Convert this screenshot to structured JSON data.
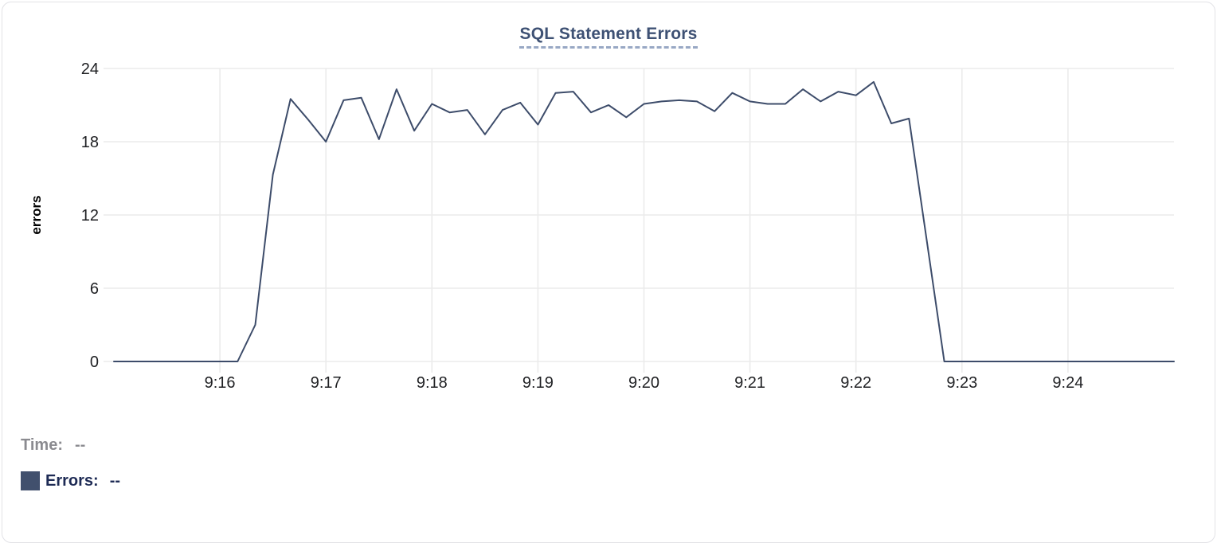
{
  "chart": {
    "title": "SQL Statement Errors",
    "tooltip_readout": {
      "time_label": "Time:",
      "time_value": "--",
      "errors_label": "Errors:",
      "errors_value": "--"
    },
    "colors": {
      "line": "#3d4c6a",
      "grid": "#ebebeb",
      "title": "#3e5174",
      "title_underline": "#98a8c4",
      "tick_text": "#1f2023",
      "y_axis_label_text": "#000000",
      "legend_time": "#8b8b90",
      "legend_errors": "#1e2b55",
      "swatch": "#41506d"
    }
  },
  "chart_data": {
    "type": "line",
    "title": "SQL Statement Errors",
    "xlabel": "",
    "ylabel": "errors",
    "ylim": [
      0,
      24
    ],
    "y_ticks": [
      0,
      6,
      12,
      18,
      24
    ],
    "x_tick_labels": [
      "9:16",
      "9:17",
      "9:18",
      "9:19",
      "9:20",
      "9:21",
      "9:22",
      "9:23",
      "9:24"
    ],
    "x_start": "9:15:00",
    "x_end": "9:25:00",
    "sample_interval_seconds": 10,
    "grid": true,
    "legend_position": "bottom-left",
    "series": [
      {
        "name": "Errors",
        "color": "#3d4c6a",
        "values": [
          0,
          0,
          0,
          0,
          0,
          0,
          0,
          0,
          3,
          15.3,
          21.5,
          19.8,
          18,
          21.4,
          21.6,
          18.2,
          22.3,
          18.9,
          21.1,
          20.4,
          20.6,
          18.6,
          20.6,
          21.2,
          19.4,
          22,
          22.1,
          20.4,
          21,
          20,
          21.1,
          21.3,
          21.4,
          21.3,
          20.5,
          22,
          21.3,
          21.1,
          21.1,
          22.3,
          21.3,
          22.1,
          21.8,
          22.9,
          19.5,
          19.9,
          10,
          0,
          0,
          0,
          0,
          0,
          0,
          0,
          0,
          0,
          0,
          0,
          0,
          0,
          0
        ]
      }
    ]
  }
}
